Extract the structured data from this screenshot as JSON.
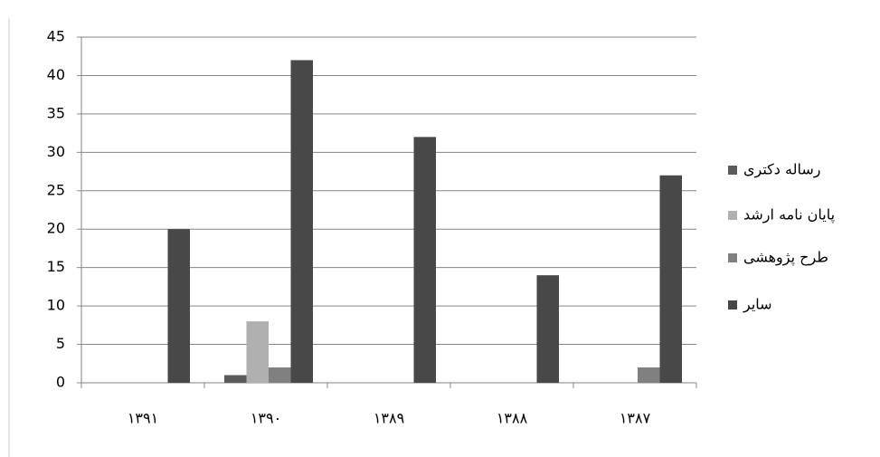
{
  "chart_data": {
    "type": "bar",
    "categories": [
      "۱۳۹۱",
      "۱۳۹۰",
      "۱۳۸۹",
      "۱۳۸۸",
      "۱۳۸۷"
    ],
    "series": [
      {
        "name": "رساله دکتری",
        "color": "#5a5a5a",
        "values": [
          0,
          1,
          0,
          0,
          0
        ]
      },
      {
        "name": "پایان نامه ارشد",
        "color": "#b0b0b0",
        "values": [
          0,
          8,
          0,
          0,
          0
        ]
      },
      {
        "name": "طرح پژوهشی",
        "color": "#808080",
        "values": [
          0,
          2,
          0,
          0,
          2
        ]
      },
      {
        "name": "سایر",
        "color": "#484848",
        "values": [
          20,
          42,
          32,
          14,
          27
        ]
      }
    ],
    "ylim": [
      0,
      45
    ],
    "yticks": [
      0,
      5,
      10,
      15,
      20,
      25,
      30,
      35,
      40,
      45
    ],
    "grid": true,
    "legend": "right"
  }
}
